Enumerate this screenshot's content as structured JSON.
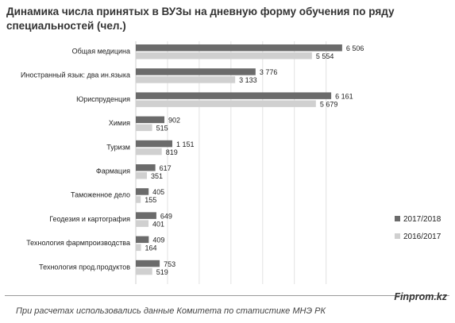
{
  "header": {
    "title": "Динамика числа принятых в ВУЗы на дневную форму обучения по ряду специальностей (чел.)"
  },
  "footer": {
    "source": "При расчетах использовались данные Комитета по статистике МНЭ РК",
    "brand": "Finprom.kz"
  },
  "colors": {
    "series_2017": "#6b6b6b",
    "series_2016": "#d0d0d0",
    "grid": "#e2e2e2"
  },
  "chart_data": {
    "type": "bar",
    "orientation": "horizontal",
    "title": "Динамика числа принятых в ВУЗы на дневную форму обучения по ряду специальностей (чел.)",
    "categories": [
      "Общая медицина",
      "Иностранный язык: два ин.языка",
      "Юриспруденция",
      "Химия",
      "Туризм",
      "Фармация",
      "Таможенное дело",
      "Геодезия и картография",
      "Технология фармпроизводства",
      "Технология прод.продуктов"
    ],
    "series": [
      {
        "name": "2017/2018",
        "values": [
          6506,
          3776,
          6161,
          902,
          1151,
          617,
          405,
          649,
          409,
          753
        ],
        "labels": [
          "6 506",
          "3 776",
          "6 161",
          "902",
          "1 151",
          "617",
          "405",
          "649",
          "409",
          "753"
        ]
      },
      {
        "name": "2016/2017",
        "values": [
          5554,
          3133,
          5679,
          515,
          819,
          351,
          155,
          401,
          164,
          519
        ],
        "labels": [
          "5 554",
          "3 133",
          "5 679",
          "515",
          "819",
          "351",
          "155",
          "401",
          "164",
          "519"
        ]
      }
    ],
    "xlim": [
      0,
      7000
    ],
    "grid": true,
    "legend_position": "right"
  }
}
